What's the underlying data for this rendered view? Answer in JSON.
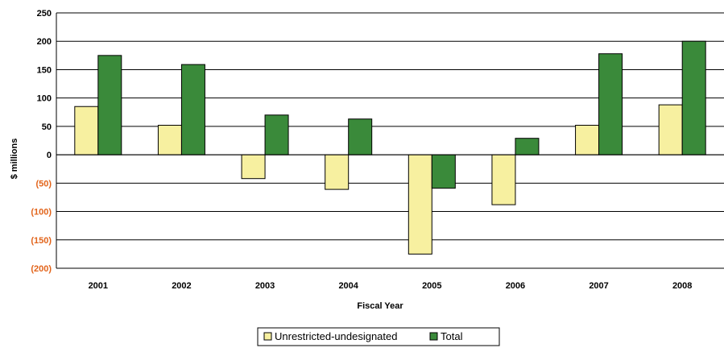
{
  "chart_data": {
    "type": "bar",
    "xlabel": "Fiscal Year",
    "ylabel": "$ millions",
    "categories": [
      "2001",
      "2002",
      "2003",
      "2004",
      "2005",
      "2006",
      "2007",
      "2008"
    ],
    "series": [
      {
        "name": "Unrestricted-undesignated",
        "color": "#f7f0a0",
        "values": [
          85,
          52,
          -42,
          -61,
          -175,
          -88,
          52,
          88
        ]
      },
      {
        "name": "Total",
        "color": "#3a8a3a",
        "values": [
          175,
          159,
          70,
          63,
          -59,
          29,
          178,
          200
        ]
      }
    ],
    "ylim": [
      -200,
      250
    ],
    "ytick_values": [
      250,
      200,
      150,
      100,
      50,
      0,
      -50,
      -100,
      -150,
      -200
    ],
    "ytick_labels": [
      "250",
      "200",
      "150",
      "100",
      "50",
      "0",
      "(50)",
      "(100)",
      "(150)",
      "(200)"
    ],
    "negative_tick_color": "#e2641b",
    "grid": true,
    "legend_position": "bottom-center"
  }
}
